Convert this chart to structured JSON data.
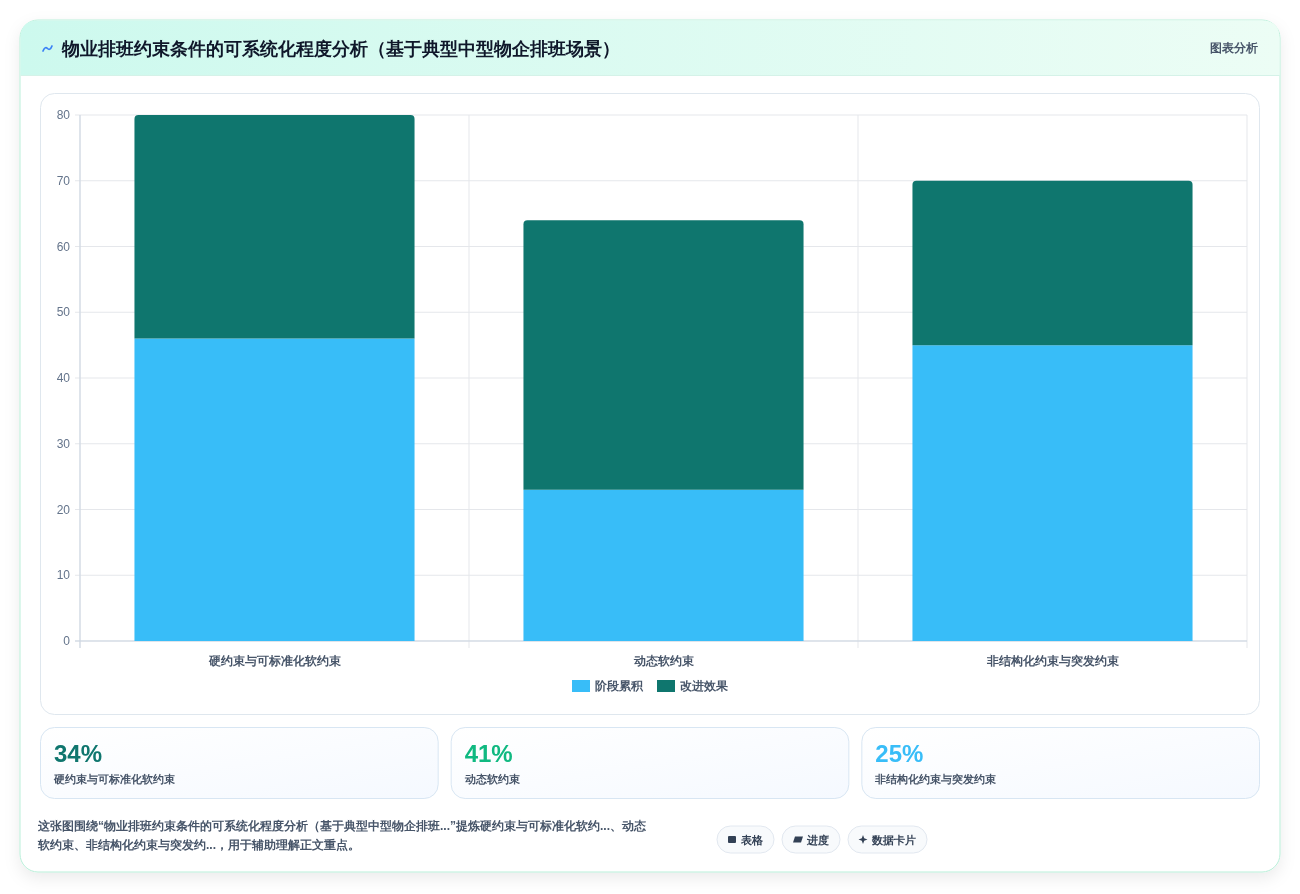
{
  "chart_data": [
    {
      "type": "bar",
      "title": "物业排班约束条件的可系统化程度分析（基于典型中型物企排班场景）",
      "categories": [
        "硬约束与可标准化软约束",
        "动态软约束",
        "非结构化约束与突发约束"
      ],
      "series": [
        {
          "name": "阶段累积",
          "color": "#38bdf8",
          "values": [
            46,
            23,
            45
          ]
        },
        {
          "name": "改进效果",
          "color": "#0f766e",
          "values": [
            34,
            41,
            25
          ]
        }
      ],
      "stacked": true,
      "ylim": [
        0,
        80
      ],
      "yticks": [
        0,
        10,
        20,
        30,
        40,
        50,
        60,
        70,
        80
      ],
      "grid": true,
      "legend": "bottom",
      "annotations": [
        "图表分析",
        "这张图围绕“物业排班约束条件的可系统化程度分析（基于典型中型物企排班...”提炼硬约束与可标准化软约...、动态软约束、非结构化约束与突发约...，用于辅助理解正文重点。",
        "表格",
        "进度",
        "数据卡片"
      ]
    },
    {
      "type": "other",
      "annotations": [
        "34%",
        "硬约束与可标准化软约束",
        "41%",
        "动态软约束",
        "25%",
        "非结构化约束与突发约束"
      ],
      "colors": [
        "#0f766e",
        "#10b981",
        "#38bdf8"
      ]
    }
  ]
}
